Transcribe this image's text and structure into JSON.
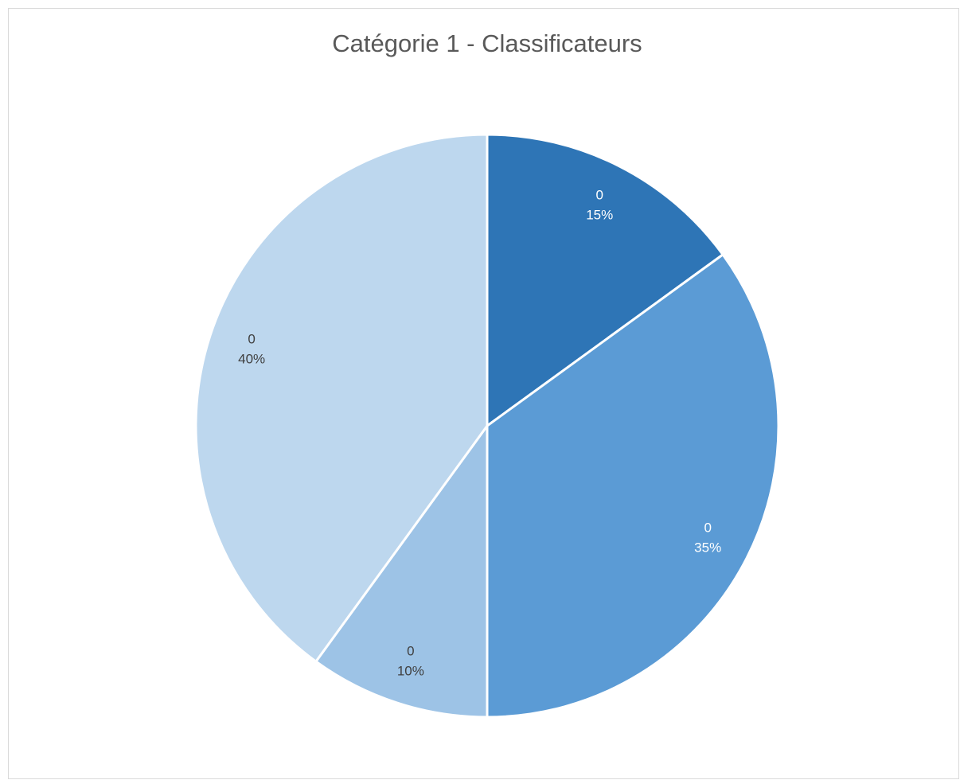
{
  "chart_data": {
    "type": "pie",
    "title": "Catégorie 1 - Classificateurs",
    "categories": [
      "0",
      "0",
      "0",
      "0"
    ],
    "values": [
      15,
      35,
      10,
      40
    ],
    "value_labels": [
      "15%",
      "35%",
      "10%",
      "40%"
    ],
    "colors": [
      "#2e75b6",
      "#5b9bd5",
      "#9dc3e6",
      "#bdd7ee"
    ]
  }
}
